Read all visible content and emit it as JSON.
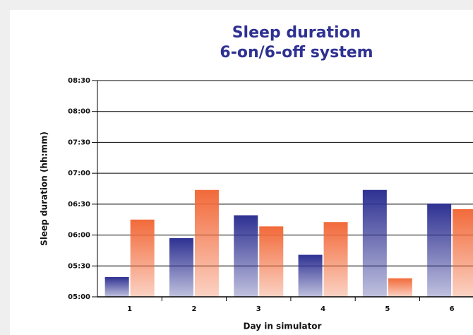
{
  "chart_data": {
    "type": "bar",
    "title": [
      "Sleep duration",
      "6-on/6-off system"
    ],
    "x_label": "Day in simulator",
    "y_label": "Sleep duration (hh:mm)",
    "categories": [
      "1",
      "2",
      "3",
      "4",
      "5",
      "6"
    ],
    "series": [
      {
        "color": "#2e3192",
        "values": [
          5.32,
          5.95,
          6.32,
          5.68,
          6.73,
          6.51
        ]
      },
      {
        "color": "#f26a3a",
        "values": [
          6.25,
          6.73,
          6.14,
          6.21,
          5.3,
          6.42
        ]
      }
    ],
    "ylim": [
      5,
      8.5
    ],
    "yticks": [
      {
        "value": 5,
        "label": "05:00"
      },
      {
        "value": 5.5,
        "label": "05:30"
      },
      {
        "value": 6,
        "label": "06:00"
      },
      {
        "value": 6.5,
        "label": "06:30"
      },
      {
        "value": 7,
        "label": "07:00"
      },
      {
        "value": 7.5,
        "label": "07:30"
      },
      {
        "value": 8,
        "label": "08:00"
      },
      {
        "value": 8.5,
        "label": "08:30"
      }
    ],
    "grid": true
  }
}
